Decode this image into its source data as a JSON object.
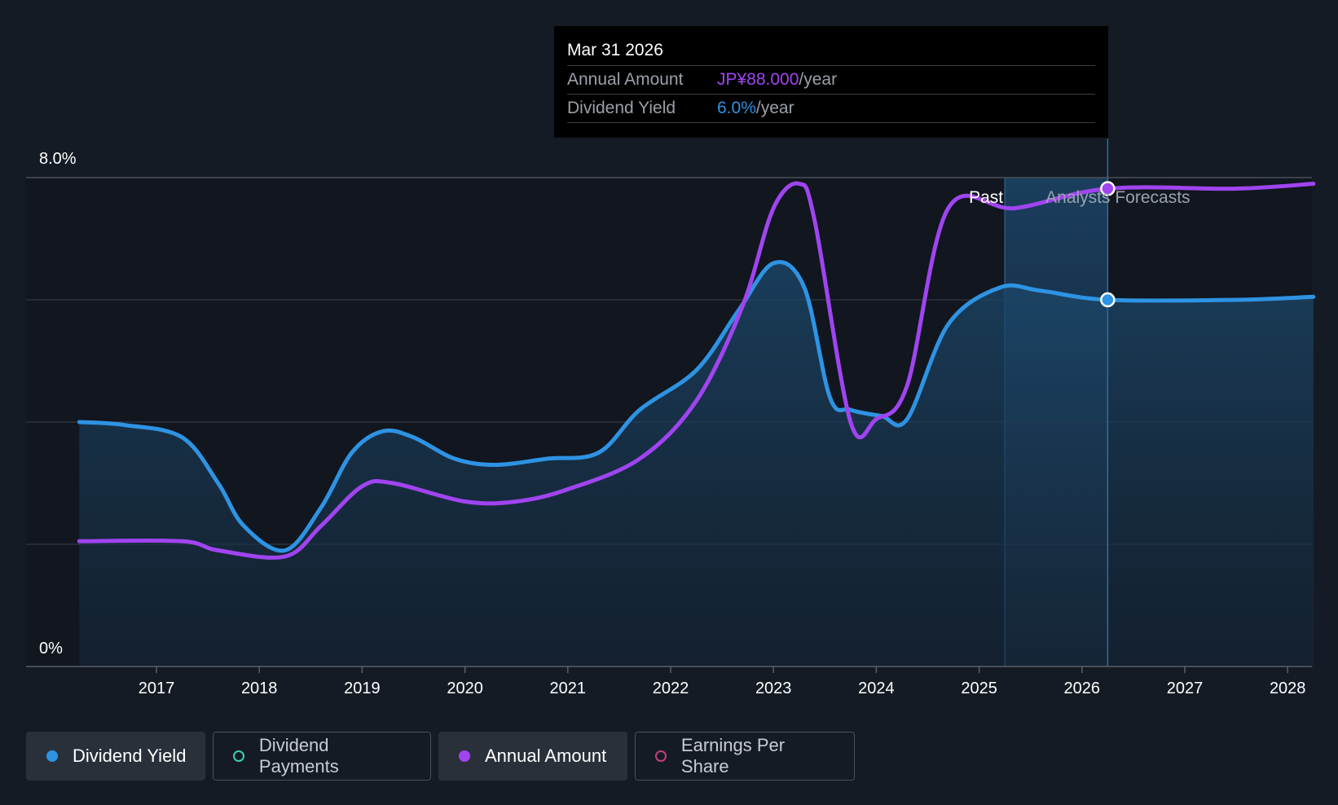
{
  "chart_data": {
    "type": "line",
    "y_axis_labels": {
      "max": "8.0%",
      "min": "0%"
    },
    "ylim": [
      0,
      8.0
    ],
    "x_ticks": [
      "2017",
      "2018",
      "2019",
      "2020",
      "2021",
      "2022",
      "2023",
      "2024",
      "2025",
      "2026",
      "2027",
      "2028"
    ],
    "period_labels": {
      "past": "Past",
      "forecast": "Analysts Forecasts"
    },
    "series": [
      {
        "name": "Dividend Yield",
        "color": "#2e93e3",
        "unit": "%",
        "points": [
          [
            2016.25,
            4.0
          ],
          [
            2016.7,
            3.95
          ],
          [
            2017.25,
            3.75
          ],
          [
            2017.6,
            3.0
          ],
          [
            2017.85,
            2.3
          ],
          [
            2018.25,
            1.9
          ],
          [
            2018.6,
            2.6
          ],
          [
            2018.9,
            3.5
          ],
          [
            2019.2,
            3.85
          ],
          [
            2019.5,
            3.75
          ],
          [
            2019.9,
            3.4
          ],
          [
            2020.3,
            3.3
          ],
          [
            2020.8,
            3.4
          ],
          [
            2021.3,
            3.5
          ],
          [
            2021.7,
            4.2
          ],
          [
            2022.25,
            4.85
          ],
          [
            2022.65,
            5.8
          ],
          [
            2023.0,
            6.6
          ],
          [
            2023.3,
            6.2
          ],
          [
            2023.55,
            4.4
          ],
          [
            2023.75,
            4.2
          ],
          [
            2024.05,
            4.1
          ],
          [
            2024.3,
            4.05
          ],
          [
            2024.7,
            5.6
          ],
          [
            2025.2,
            6.2
          ],
          [
            2025.6,
            6.15
          ],
          [
            2026.25,
            6.0
          ],
          [
            2027.5,
            6.0
          ],
          [
            2028.25,
            6.05
          ]
        ]
      },
      {
        "name": "Annual Amount",
        "color": "#a044f0",
        "unit": "JPY",
        "points": [
          [
            2016.25,
            2.05
          ],
          [
            2017.25,
            2.05
          ],
          [
            2017.6,
            1.9
          ],
          [
            2018.25,
            1.8
          ],
          [
            2018.6,
            2.3
          ],
          [
            2019.0,
            2.95
          ],
          [
            2019.3,
            3.0
          ],
          [
            2020.0,
            2.7
          ],
          [
            2020.5,
            2.7
          ],
          [
            2021.0,
            2.9
          ],
          [
            2021.7,
            3.4
          ],
          [
            2022.25,
            4.35
          ],
          [
            2022.7,
            5.9
          ],
          [
            2023.0,
            7.5
          ],
          [
            2023.25,
            7.9
          ],
          [
            2023.4,
            7.3
          ],
          [
            2023.75,
            4.0
          ],
          [
            2024.0,
            4.05
          ],
          [
            2024.3,
            4.6
          ],
          [
            2024.7,
            7.5
          ],
          [
            2025.35,
            7.5
          ],
          [
            2026.25,
            7.82
          ],
          [
            2027.5,
            7.82
          ],
          [
            2028.25,
            7.9
          ]
        ]
      }
    ],
    "divider_year": 2025.25,
    "selected_year": 2026.25,
    "legend_position": "bottom-left"
  },
  "tooltip": {
    "date": "Mar 31 2026",
    "annual_label": "Annual Amount",
    "annual_value": "JP¥88.000",
    "annual_unit": "/year",
    "yield_label": "Dividend Yield",
    "yield_value": "6.0%",
    "yield_unit": "/year"
  },
  "legend": {
    "items": [
      {
        "label": "Dividend Yield",
        "color": "#2e93e3",
        "active": true
      },
      {
        "label": "Dividend Payments",
        "color": "#3ecfb4",
        "active": false
      },
      {
        "label": "Annual Amount",
        "color": "#a044f0",
        "active": true
      },
      {
        "label": "Earnings Per Share",
        "color": "#c0407a",
        "active": false
      }
    ]
  }
}
